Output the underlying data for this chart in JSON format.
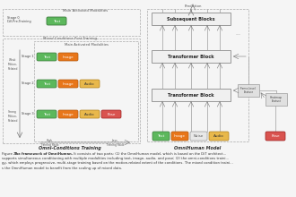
{
  "title_left": "Omni-Conditions Training",
  "title_right": "OmniHuman Model",
  "colors": {
    "text_box": "#5cb85c",
    "image_box": "#e8761a",
    "audio_box": "#e8b84b",
    "pose_box": "#d9534f",
    "noise_box": "#e8e8e8",
    "block_fill": "#efefef",
    "block_border": "#999999",
    "dashed_border": "#aaaaaa",
    "feature_box": "#d4d4d4",
    "bg": "#f5f5f5"
  },
  "caption_bold": "Figure 2.  The framework of OmniHuman.",
  "caption_rest": " It consists of two parts: (1) the OmniHuman model, which is based on the DiT architect...\nsupports simultaneous conditioning with multiple modalities including text, image, audio, and pose; (2) the omni-conditions traini...\ngy, which employs progressive, multi-stage training based on the motion-related extent of the conditions. The mixed condition traini...\ns the OmniHuman model to benefit from the scaling up of mixed data."
}
